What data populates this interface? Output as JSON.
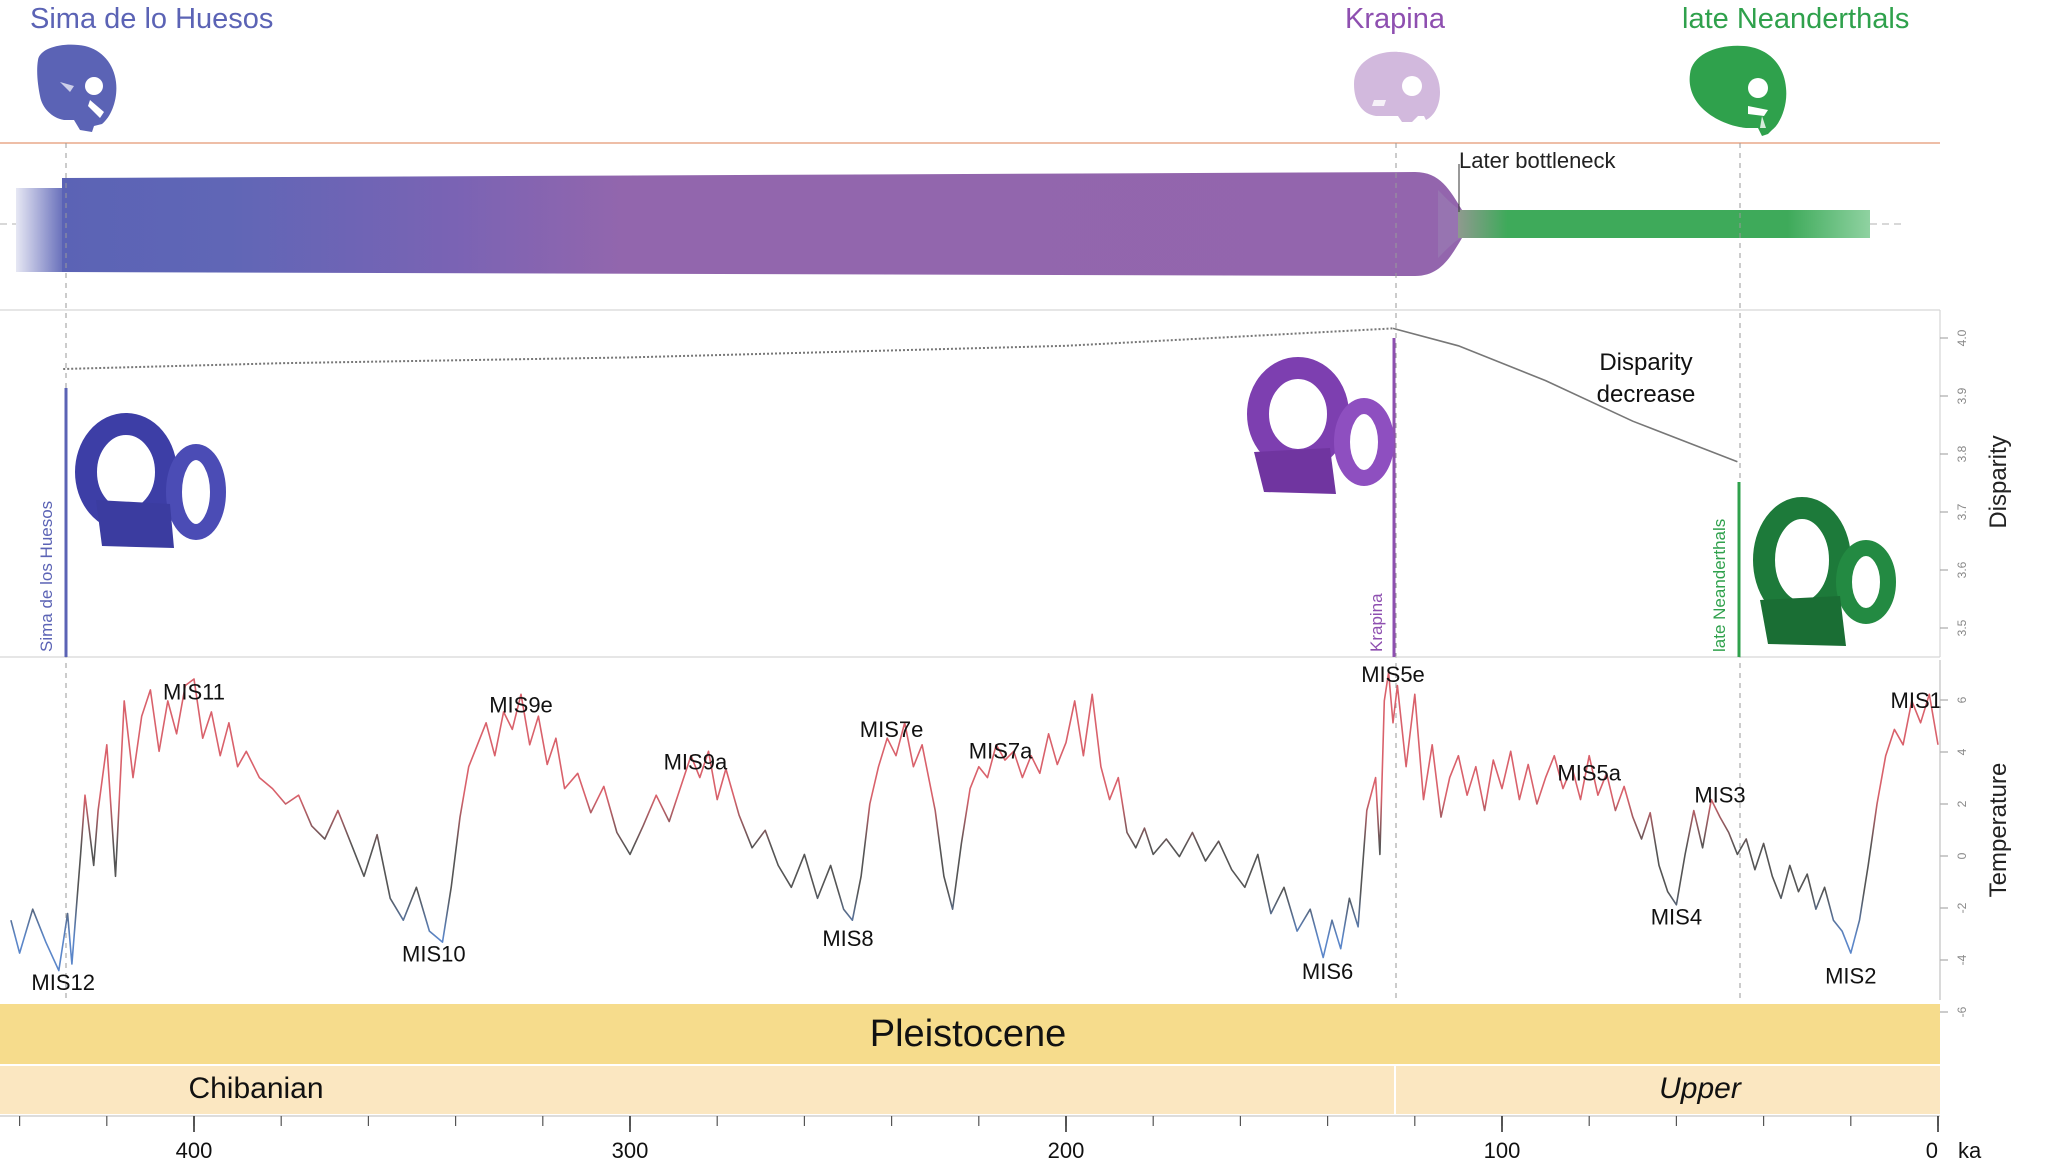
{
  "groups": {
    "sima": {
      "name": "Sima de lo Huesos",
      "vertical_label": "Sima de los Huesos",
      "color": "#5b63b5",
      "age_ka": 430
    },
    "krapina": {
      "name": "Krapina",
      "vertical_label": "Krapina",
      "color": "#8e4fb0",
      "age_ka": 125
    },
    "late": {
      "name": "late Neanderthals",
      "vertical_label": "late Neanderthals",
      "color": "#2fa14c",
      "age_ka": 46
    }
  },
  "icons": {
    "sima_skull": "skull-icon",
    "krapina_skull": "skull-icon",
    "late_skull": "skull-icon",
    "sima_ear": "inner-ear-icon",
    "krapina_ear": "inner-ear-icon",
    "late_ear": "inner-ear-icon"
  },
  "bottleneck": {
    "label": "Later bottleneck"
  },
  "disparity": {
    "axis_label": "Disparity",
    "annotation_line1": "Disparity",
    "annotation_line2": "decrease",
    "tick_labels": [
      "4.0",
      "3.9",
      "3.8",
      "3.7",
      "3.6",
      "3.5"
    ]
  },
  "temperature": {
    "axis_label": "Temperature",
    "tick_labels": [
      "6",
      "4",
      "2",
      "0",
      "-2",
      "-4",
      "-6"
    ],
    "stages": [
      {
        "label": "MIS12",
        "age_ka": 430,
        "value": -6.5
      },
      {
        "label": "MIS11",
        "age_ka": 400,
        "value": 5.2
      },
      {
        "label": "MIS10",
        "age_ka": 345,
        "value": -5.2
      },
      {
        "label": "MIS9e",
        "age_ka": 325,
        "value": 4.6
      },
      {
        "label": "MIS9a",
        "age_ka": 285,
        "value": 2.0
      },
      {
        "label": "MIS8",
        "age_ka": 250,
        "value": -4.5
      },
      {
        "label": "MIS7e",
        "age_ka": 240,
        "value": 3.5
      },
      {
        "label": "MIS7a",
        "age_ka": 215,
        "value": 2.5
      },
      {
        "label": "MIS6",
        "age_ka": 140,
        "value": -6.0
      },
      {
        "label": "MIS5e",
        "age_ka": 125,
        "value": 6.2
      },
      {
        "label": "MIS5a",
        "age_ka": 80,
        "value": 1.5
      },
      {
        "label": "MIS4",
        "age_ka": 60,
        "value": -3.5
      },
      {
        "label": "MIS3",
        "age_ka": 50,
        "value": 0.5
      },
      {
        "label": "MIS2",
        "age_ka": 20,
        "value": -6.2
      },
      {
        "label": "MIS1",
        "age_ka": 5,
        "value": 4.8
      }
    ]
  },
  "timescale": {
    "epoch": "Pleistocene",
    "stage_left": "Chibanian",
    "stage_right": "Upper",
    "axis_tick_labels": [
      "400",
      "300",
      "200",
      "100",
      "0"
    ],
    "axis_unit": "ka"
  },
  "colors": {
    "warm": "#d9616b",
    "cold": "#5b86c9",
    "neutral": "#555555",
    "epoch_band": "#f6dc8c",
    "stage_band": "#fbe7c1",
    "divider": "#e8a98a"
  },
  "chart_data": [
    {
      "type": "line",
      "title": "",
      "xlabel": "",
      "ylabel": "Disparity",
      "x_unit": "ka",
      "xlim": [
        442,
        0
      ],
      "ylim": [
        3.5,
        4.0
      ],
      "series": [
        {
          "values": [
            [
              430,
              3.95
            ],
            [
              380,
              3.96
            ],
            [
              300,
              3.97
            ],
            [
              200,
              3.99
            ],
            [
              125,
              4.02
            ]
          ]
        },
        {
          "values": [
            [
              125,
              4.02
            ],
            [
              110,
              3.99
            ],
            [
              90,
              3.93
            ],
            [
              70,
              3.86
            ],
            [
              46,
              3.79
            ]
          ]
        }
      ],
      "annotations": [
        "Disparity",
        "decrease"
      ],
      "grid": false
    },
    {
      "type": "line",
      "title": "",
      "xlabel": "",
      "ylabel": "Temperature",
      "x_unit": "ka",
      "xlim": [
        442,
        0
      ],
      "ylim": [
        -7,
        7
      ],
      "grid": false,
      "series": [
        {
          "values": [
            [
              442,
              -4.5
            ],
            [
              440,
              -6.0
            ],
            [
              437,
              -4.0
            ],
            [
              434,
              -5.5
            ],
            [
              431,
              -6.8
            ],
            [
              429,
              -4.2
            ],
            [
              428,
              -6.5
            ],
            [
              426,
              -1.5
            ],
            [
              425,
              1.2
            ],
            [
              423,
              -2.0
            ],
            [
              422,
              0.5
            ],
            [
              420,
              3.5
            ],
            [
              418,
              -2.5
            ],
            [
              416,
              5.5
            ],
            [
              414,
              2.0
            ],
            [
              412,
              4.8
            ],
            [
              410,
              6.0
            ],
            [
              408,
              3.2
            ],
            [
              406,
              5.5
            ],
            [
              404,
              4.0
            ],
            [
              402,
              6.2
            ],
            [
              400,
              6.5
            ],
            [
              398,
              3.8
            ],
            [
              396,
              5.0
            ],
            [
              394,
              3.0
            ],
            [
              392,
              4.5
            ],
            [
              390,
              2.5
            ],
            [
              388,
              3.2
            ],
            [
              385,
              2.0
            ],
            [
              382,
              1.5
            ],
            [
              379,
              0.8
            ],
            [
              376,
              1.2
            ],
            [
              373,
              -0.2
            ],
            [
              370,
              -0.8
            ],
            [
              367,
              0.5
            ],
            [
              364,
              -1.0
            ],
            [
              361,
              -2.5
            ],
            [
              358,
              -0.6
            ],
            [
              355,
              -3.5
            ],
            [
              352,
              -4.5
            ],
            [
              349,
              -3.0
            ],
            [
              346,
              -5.0
            ],
            [
              343,
              -5.5
            ],
            [
              341,
              -3.0
            ],
            [
              339,
              0.2
            ],
            [
              337,
              2.5
            ],
            [
              335,
              3.5
            ],
            [
              333,
              4.5
            ],
            [
              331,
              3.0
            ],
            [
              329,
              5.0
            ],
            [
              327,
              4.2
            ],
            [
              325,
              5.8
            ],
            [
              323,
              3.5
            ],
            [
              321,
              4.8
            ],
            [
              319,
              2.6
            ],
            [
              317,
              3.8
            ],
            [
              315,
              1.5
            ],
            [
              312,
              2.2
            ],
            [
              309,
              0.4
            ],
            [
              306,
              1.6
            ],
            [
              303,
              -0.5
            ],
            [
              300,
              -1.5
            ],
            [
              297,
              -0.2
            ],
            [
              294,
              1.2
            ],
            [
              291,
              0.0
            ],
            [
              288,
              1.8
            ],
            [
              286,
              3.0
            ],
            [
              284,
              2.0
            ],
            [
              282,
              3.2
            ],
            [
              280,
              1.0
            ],
            [
              278,
              2.4
            ],
            [
              275,
              0.3
            ],
            [
              272,
              -1.2
            ],
            [
              269,
              -0.4
            ],
            [
              266,
              -2.0
            ],
            [
              263,
              -3.0
            ],
            [
              260,
              -1.5
            ],
            [
              257,
              -3.5
            ],
            [
              254,
              -2.0
            ],
            [
              251,
              -4.0
            ],
            [
              249,
              -4.5
            ],
            [
              247,
              -2.5
            ],
            [
              245,
              0.8
            ],
            [
              243,
              2.5
            ],
            [
              241,
              3.8
            ],
            [
              239,
              3.0
            ],
            [
              237,
              4.5
            ],
            [
              235,
              2.5
            ],
            [
              233,
              3.5
            ],
            [
              230,
              0.5
            ],
            [
              228,
              -2.5
            ],
            [
              226,
              -4.0
            ],
            [
              224,
              -1.0
            ],
            [
              222,
              1.5
            ],
            [
              220,
              2.5
            ],
            [
              218,
              2.0
            ],
            [
              216,
              3.5
            ],
            [
              214,
              2.8
            ],
            [
              212,
              3.2
            ],
            [
              210,
              2.0
            ],
            [
              208,
              3.0
            ],
            [
              206,
              2.2
            ],
            [
              204,
              4.0
            ],
            [
              202,
              2.6
            ],
            [
              200,
              3.6
            ],
            [
              198,
              5.5
            ],
            [
              196,
              3.0
            ],
            [
              194,
              5.8
            ],
            [
              192,
              2.5
            ],
            [
              190,
              1.0
            ],
            [
              188,
              2.0
            ],
            [
              186,
              -0.5
            ],
            [
              184,
              -1.2
            ],
            [
              182,
              -0.3
            ],
            [
              180,
              -1.5
            ],
            [
              177,
              -0.8
            ],
            [
              174,
              -1.6
            ],
            [
              171,
              -0.5
            ],
            [
              168,
              -1.8
            ],
            [
              165,
              -0.9
            ],
            [
              162,
              -2.2
            ],
            [
              159,
              -3.0
            ],
            [
              156,
              -1.5
            ],
            [
              153,
              -4.2
            ],
            [
              150,
              -3.0
            ],
            [
              147,
              -5.0
            ],
            [
              144,
              -4.0
            ],
            [
              141,
              -6.2
            ],
            [
              139,
              -4.5
            ],
            [
              137,
              -5.8
            ],
            [
              135,
              -3.5
            ],
            [
              133,
              -4.8
            ],
            [
              131,
              0.5
            ],
            [
              129,
              2.0
            ],
            [
              128,
              -1.5
            ],
            [
              127,
              5.5
            ],
            [
              126,
              6.8
            ],
            [
              125,
              4.5
            ],
            [
              124,
              6.2
            ],
            [
              122,
              2.5
            ],
            [
              120,
              5.8
            ],
            [
              118,
              1.0
            ],
            [
              116,
              3.5
            ],
            [
              114,
              0.2
            ],
            [
              112,
              2.0
            ],
            [
              110,
              3.0
            ],
            [
              108,
              1.2
            ],
            [
              106,
              2.5
            ],
            [
              104,
              0.5
            ],
            [
              102,
              2.8
            ],
            [
              100,
              1.5
            ],
            [
              98,
              3.2
            ],
            [
              96,
              1.0
            ],
            [
              94,
              2.6
            ],
            [
              92,
              0.8
            ],
            [
              90,
              2.0
            ],
            [
              88,
              3.0
            ],
            [
              86,
              1.5
            ],
            [
              84,
              2.5
            ],
            [
              82,
              1.0
            ],
            [
              80,
              3.0
            ],
            [
              78,
              1.2
            ],
            [
              76,
              2.2
            ],
            [
              74,
              0.5
            ],
            [
              72,
              1.6
            ],
            [
              70,
              0.2
            ],
            [
              68,
              -0.8
            ],
            [
              66,
              0.4
            ],
            [
              64,
              -2.0
            ],
            [
              62,
              -3.2
            ],
            [
              60,
              -3.8
            ],
            [
              58,
              -1.5
            ],
            [
              56,
              0.5
            ],
            [
              54,
              -1.2
            ],
            [
              52,
              1.0
            ],
            [
              50,
              0.2
            ],
            [
              48,
              -0.5
            ],
            [
              46,
              -1.5
            ],
            [
              44,
              -0.8
            ],
            [
              42,
              -2.2
            ],
            [
              40,
              -1.0
            ],
            [
              38,
              -2.5
            ],
            [
              36,
              -3.5
            ],
            [
              34,
              -2.0
            ],
            [
              32,
              -3.2
            ],
            [
              30,
              -2.4
            ],
            [
              28,
              -4.0
            ],
            [
              26,
              -3.0
            ],
            [
              24,
              -4.5
            ],
            [
              22,
              -5.0
            ],
            [
              20,
              -6.0
            ],
            [
              18,
              -4.5
            ],
            [
              16,
              -2.0
            ],
            [
              14,
              0.8
            ],
            [
              12,
              3.0
            ],
            [
              10,
              4.2
            ],
            [
              8,
              3.5
            ],
            [
              6,
              5.5
            ],
            [
              4,
              4.5
            ],
            [
              2,
              5.8
            ],
            [
              0,
              3.5
            ]
          ]
        }
      ]
    }
  ]
}
